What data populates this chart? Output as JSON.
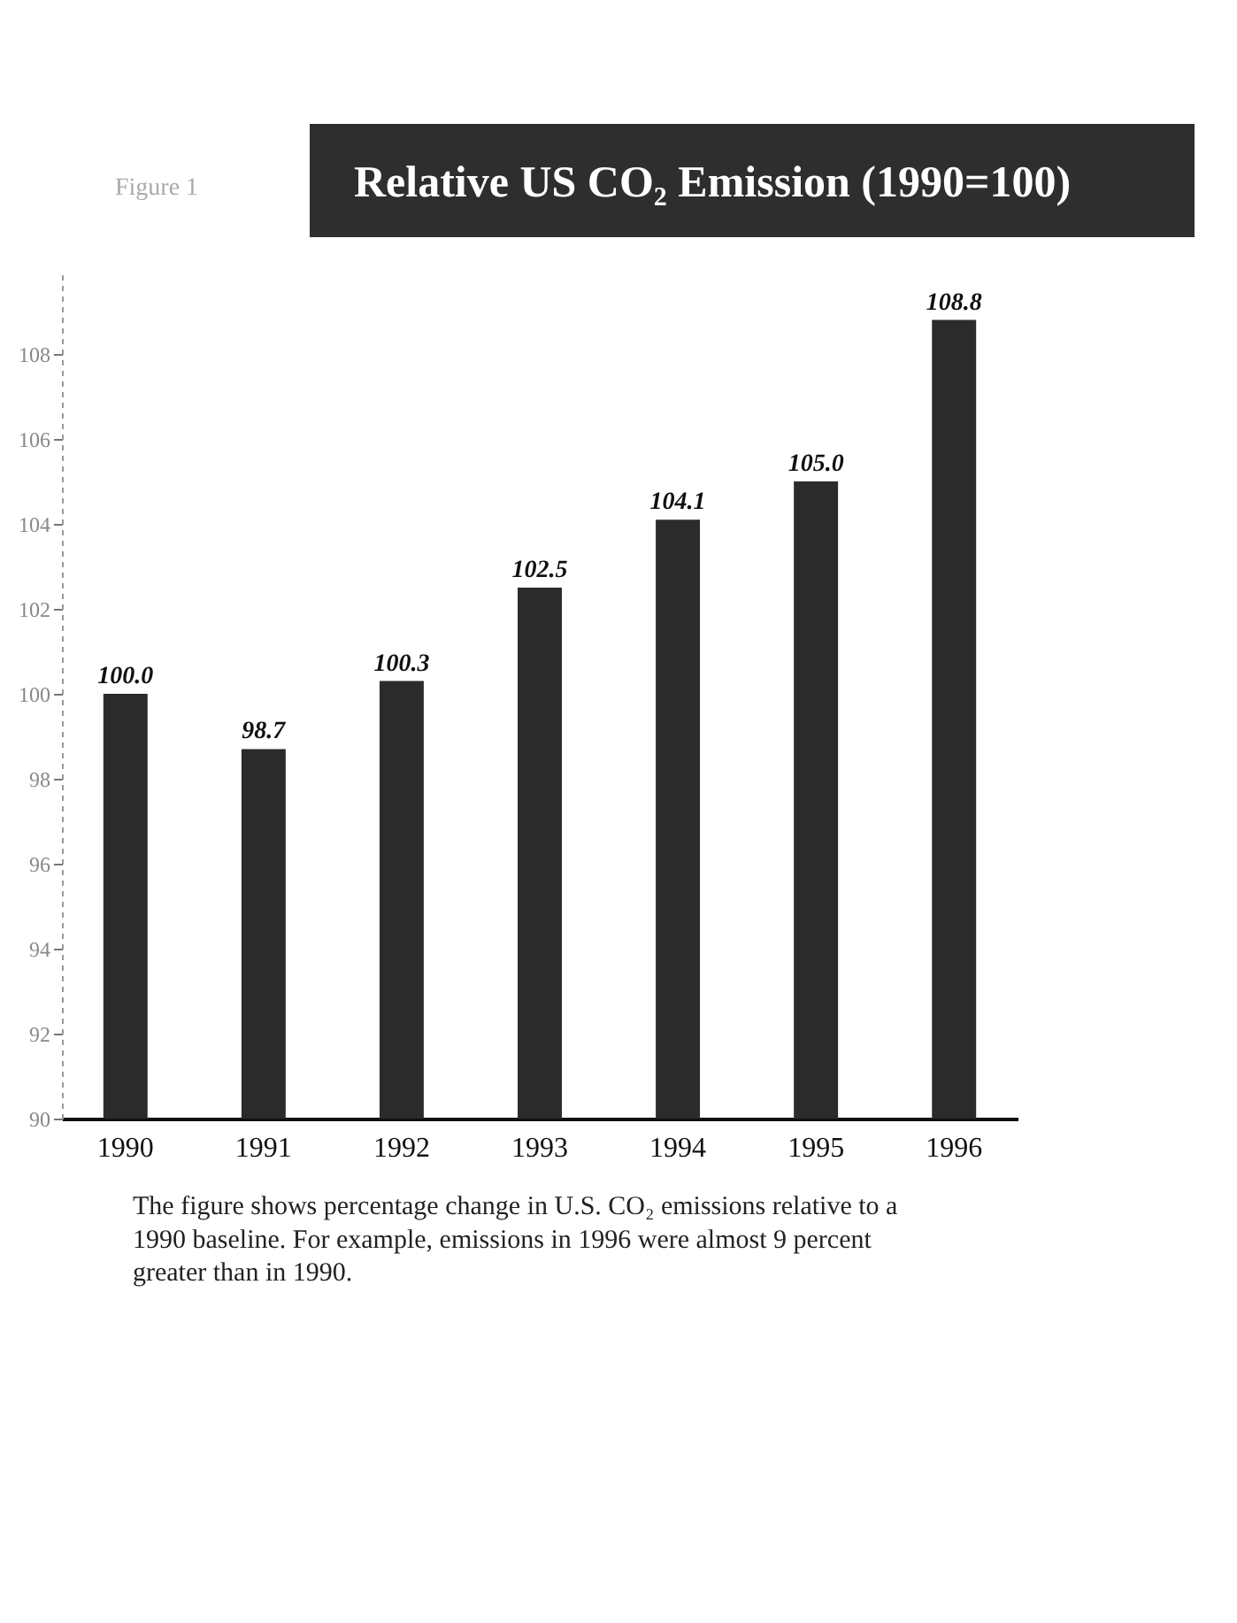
{
  "chart_data": {
    "type": "bar",
    "title": "Relative US CO₂ Emission (1990=100)",
    "categories": [
      "1990",
      "1991",
      "1992",
      "1993",
      "1994",
      "1995",
      "1996"
    ],
    "values": [
      100.0,
      98.7,
      100.3,
      102.5,
      104.1,
      105.0,
      108.8
    ],
    "value_labels": [
      "100.0",
      "98.7",
      "100.3",
      "102.5",
      "104.1",
      "105.0",
      "108.8"
    ],
    "color": "#2b2b2b",
    "ylim": [
      90,
      110
    ],
    "yticks": [
      90,
      92,
      94,
      96,
      98,
      100,
      102,
      104,
      106,
      108
    ],
    "grid": false,
    "annotations": [
      "Figure 1",
      "The figure shows percentage change in U.S. CO₂ emissions relative to a 1990 baseline. For example, emissions in 1996 were almost 9 percent greater than in 1990."
    ]
  }
}
